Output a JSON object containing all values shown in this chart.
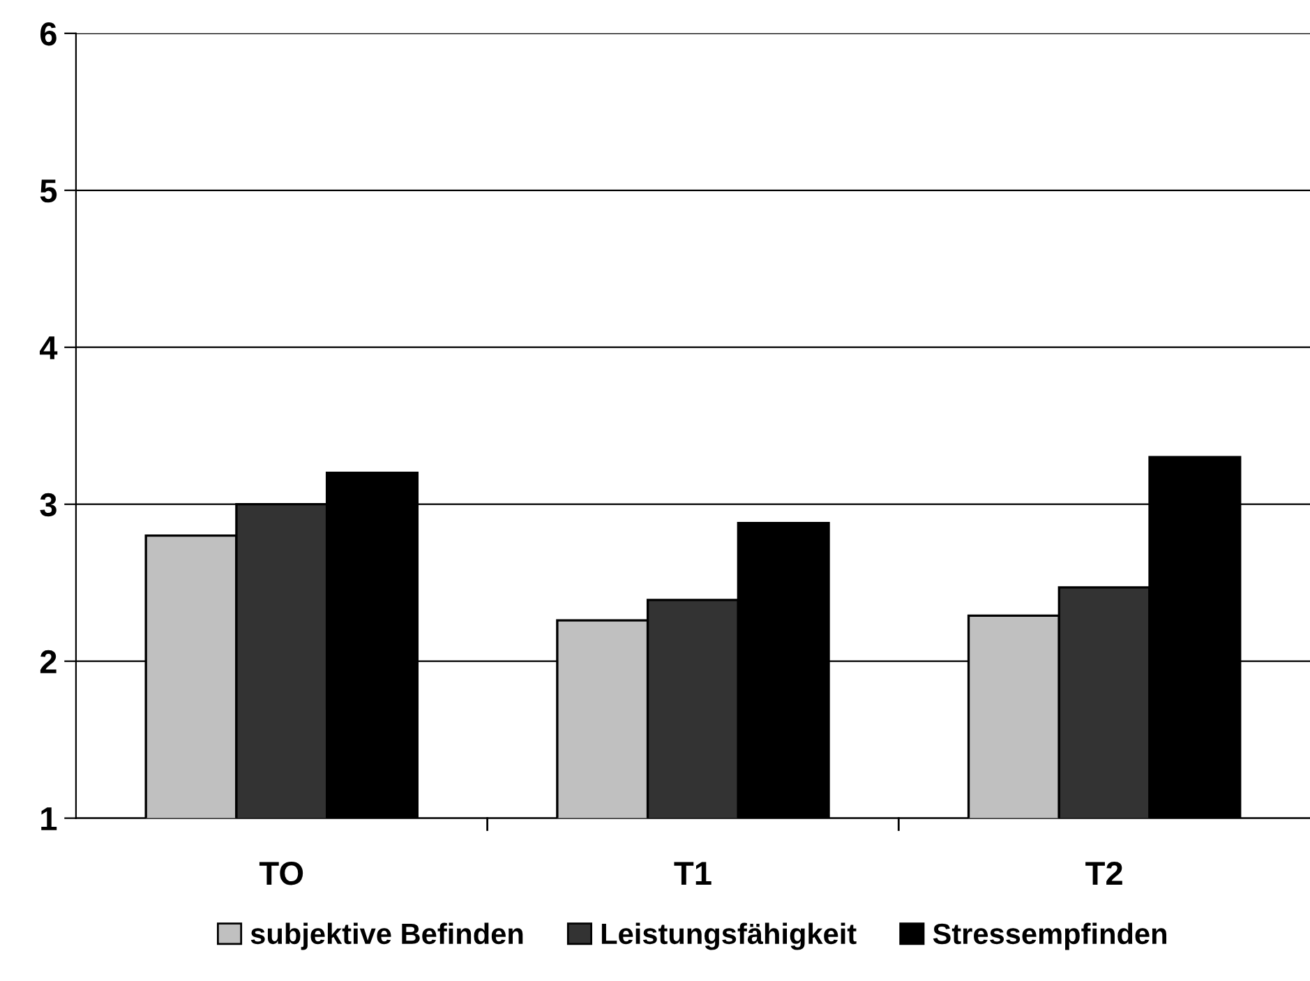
{
  "chart_data": {
    "type": "bar",
    "categories": [
      "TO",
      "T1",
      "T2"
    ],
    "series": [
      {
        "name": "subjektive Befinden",
        "color": "#c0c0c0",
        "values": [
          2.8,
          2.26,
          2.29
        ]
      },
      {
        "name": "Leistungsfähigkeit",
        "color": "#333333",
        "values": [
          3.0,
          2.39,
          2.47
        ]
      },
      {
        "name": "Stressempfinden",
        "color": "#000000",
        "values": [
          3.2,
          2.88,
          3.3
        ]
      }
    ],
    "ylim": [
      1,
      6
    ],
    "yticks": [
      1,
      2,
      3,
      4,
      5,
      6
    ],
    "grid": "y",
    "legend": "bottom"
  }
}
